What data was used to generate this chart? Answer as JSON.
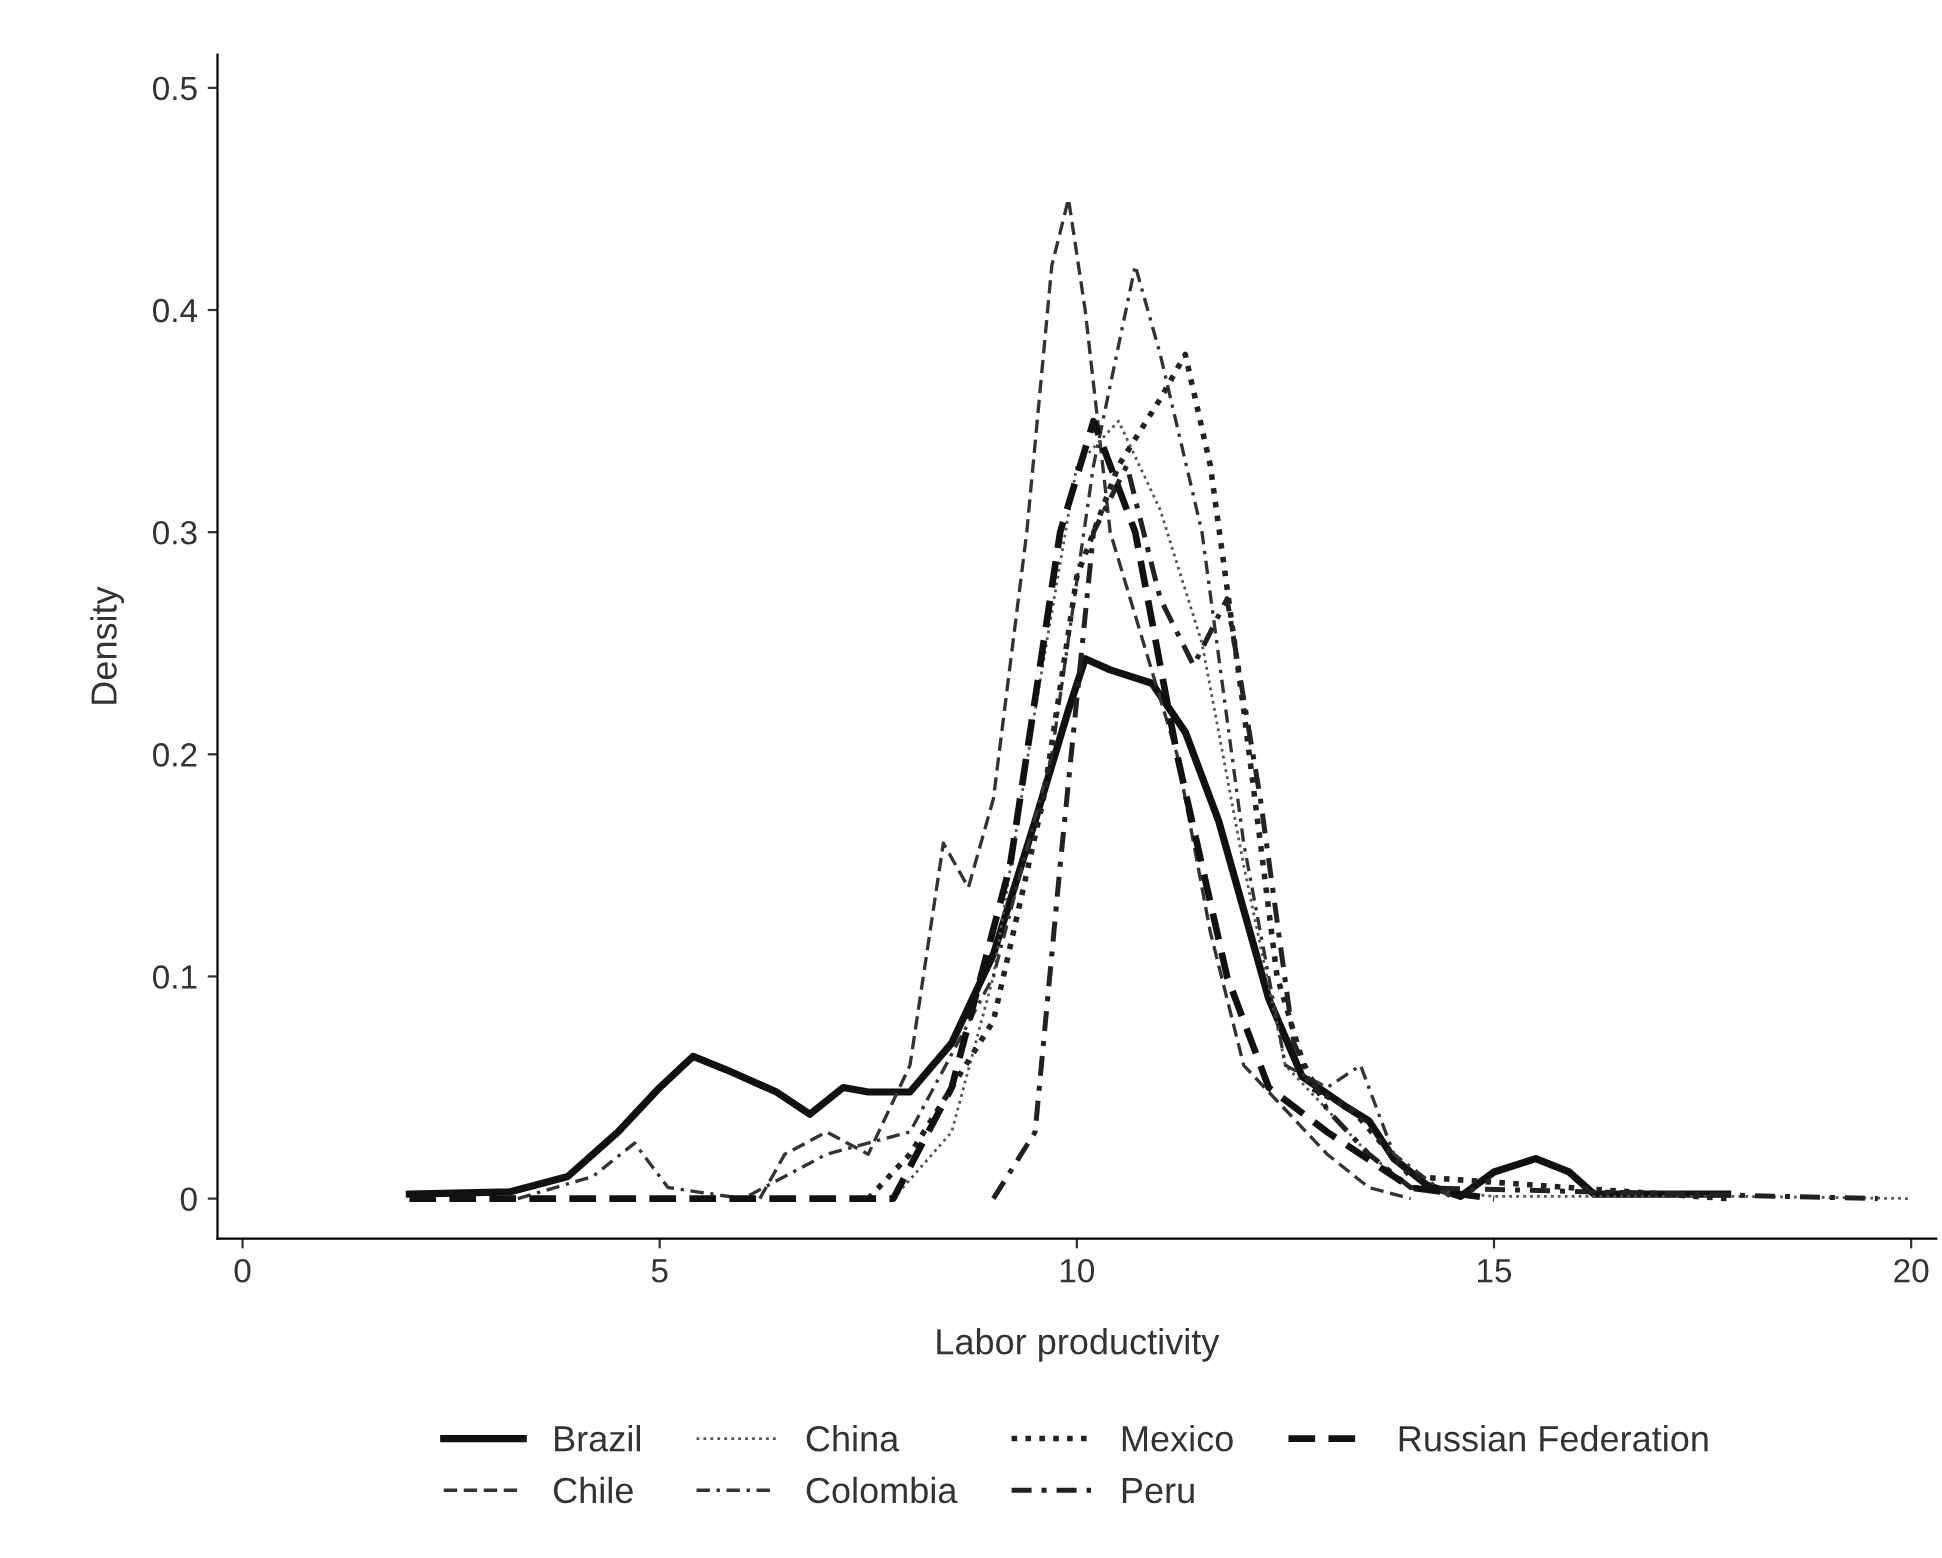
{
  "chart_data": {
    "type": "line",
    "xlabel": "Labor productivity",
    "ylabel": "Density",
    "xlim": [
      -0.3,
      20.3
    ],
    "ylim": [
      -0.018,
      0.515
    ],
    "xticks": [
      0,
      5,
      10,
      15,
      20
    ],
    "yticks": [
      0,
      0.1,
      0.2,
      0.3,
      0.4,
      0.5
    ],
    "grid": false,
    "legend": "bottom",
    "series": [
      {
        "name": "Brazil",
        "color": "#111111",
        "line_style": "solid",
        "x": [
          2,
          3.2,
          3.9,
          4.5,
          5.0,
          5.4,
          5.8,
          6.4,
          6.8,
          7.2,
          7.5,
          8.0,
          8.5,
          9.0,
          9.5,
          9.9,
          10.1,
          10.4,
          10.9,
          11.3,
          11.7,
          12.0,
          12.3,
          12.7,
          13.2,
          13.5,
          13.8,
          14.2,
          14.6,
          15.0,
          15.5,
          15.9,
          16.2,
          17.8
        ],
        "values": [
          0.002,
          0.003,
          0.01,
          0.03,
          0.05,
          0.064,
          0.058,
          0.048,
          0.038,
          0.05,
          0.048,
          0.048,
          0.07,
          0.11,
          0.17,
          0.22,
          0.243,
          0.238,
          0.232,
          0.21,
          0.17,
          0.13,
          0.09,
          0.055,
          0.042,
          0.035,
          0.018,
          0.006,
          0.001,
          0.012,
          0.018,
          0.012,
          0.002,
          0.002
        ]
      },
      {
        "name": "Chile",
        "color": "#333333",
        "line_style": "dashed",
        "x": [
          6.2,
          6.5,
          7.0,
          7.5,
          8.0,
          8.4,
          8.7,
          9.0,
          9.4,
          9.7,
          9.9,
          10.1,
          10.4,
          10.8,
          11.2,
          11.6,
          12.0,
          12.5,
          13.0,
          13.5,
          14.0
        ],
        "values": [
          0,
          0.02,
          0.03,
          0.02,
          0.06,
          0.16,
          0.14,
          0.18,
          0.3,
          0.42,
          0.45,
          0.4,
          0.3,
          0.25,
          0.2,
          0.12,
          0.06,
          0.04,
          0.02,
          0.005,
          0
        ]
      },
      {
        "name": "China",
        "color": "#555555",
        "line_style": "dotted",
        "x": [
          7.8,
          8.5,
          9.0,
          9.5,
          10.0,
          10.5,
          11.0,
          11.5,
          12.0,
          12.5,
          13.0,
          13.5,
          14.0,
          15.0,
          18.0,
          20.0
        ],
        "values": [
          0,
          0.03,
          0.1,
          0.22,
          0.33,
          0.35,
          0.31,
          0.25,
          0.15,
          0.06,
          0.04,
          0.02,
          0.005,
          0.001,
          0.001,
          0
        ]
      },
      {
        "name": "Colombia",
        "color": "#333333",
        "line_style": "dashdot",
        "x": [
          3.3,
          4.2,
          4.7,
          5.1,
          6.0,
          7.0,
          8.0,
          9.0,
          9.7,
          10.2,
          10.7,
          11.0,
          11.5,
          12.0,
          12.5,
          13.0,
          13.4,
          13.8,
          14.5
        ],
        "values": [
          0,
          0.01,
          0.025,
          0.005,
          0,
          0.02,
          0.03,
          0.1,
          0.2,
          0.33,
          0.42,
          0.38,
          0.3,
          0.16,
          0.06,
          0.05,
          0.06,
          0.02,
          0
        ]
      },
      {
        "name": "Mexico",
        "color": "#222222",
        "line_style": "dotted",
        "x": [
          7.5,
          8.0,
          9.0,
          9.6,
          10.0,
          10.5,
          11.0,
          11.3,
          11.6,
          12.0,
          12.4,
          12.8,
          13.3,
          14.0,
          17.8
        ],
        "values": [
          0,
          0.02,
          0.08,
          0.18,
          0.28,
          0.33,
          0.36,
          0.38,
          0.33,
          0.22,
          0.1,
          0.05,
          0.04,
          0.01,
          0
        ]
      },
      {
        "name": "Peru",
        "color": "#222222",
        "line_style": "dashdot",
        "x": [
          9.0,
          9.5,
          9.8,
          10.2,
          10.6,
          11.0,
          11.4,
          11.8,
          12.2,
          12.6,
          13.0,
          13.5,
          14.0,
          19.6
        ],
        "values": [
          0,
          0.03,
          0.15,
          0.3,
          0.33,
          0.27,
          0.24,
          0.27,
          0.18,
          0.07,
          0.04,
          0.02,
          0.005,
          0
        ]
      },
      {
        "name": "Russian Federation",
        "color": "#111111",
        "line_style": "dashed",
        "x": [
          2.0,
          6.0,
          7.8,
          8.5,
          9.2,
          9.8,
          10.2,
          10.7,
          11.2,
          11.8,
          12.3,
          13.0,
          14.0,
          15.0
        ],
        "values": [
          0,
          0,
          0,
          0.05,
          0.15,
          0.3,
          0.35,
          0.3,
          0.2,
          0.1,
          0.05,
          0.03,
          0.005,
          0
        ]
      }
    ]
  }
}
